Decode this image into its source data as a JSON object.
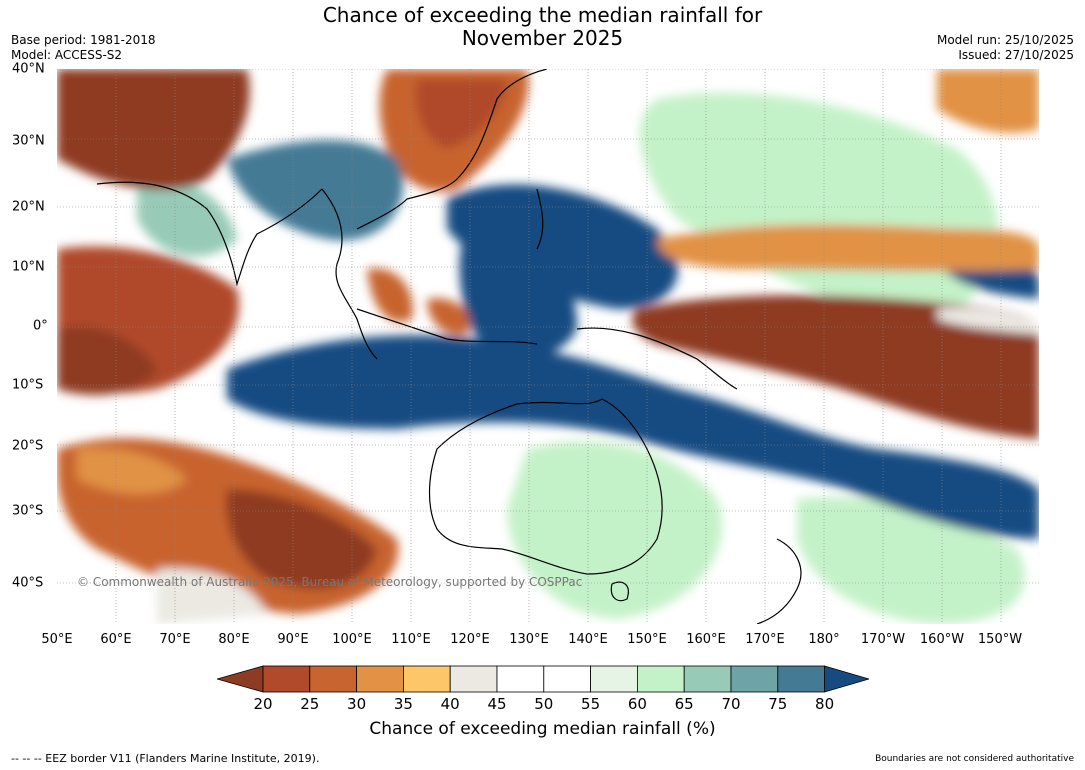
{
  "title_line1": "Chance of exceeding the median rainfall for",
  "title_line2": "November 2025",
  "left_meta": {
    "base_period": "Base period: 1981-2018",
    "model": "Model: ACCESS-S2"
  },
  "right_meta": {
    "model_run": "Model run: 25/10/2025",
    "issued": "Issued: 27/10/2025"
  },
  "lon_labels": [
    "50°E",
    "60°E",
    "70°E",
    "80°E",
    "90°E",
    "100°E",
    "110°E",
    "120°E",
    "130°E",
    "140°E",
    "150°E",
    "160°E",
    "170°E",
    "180°",
    "170°W",
    "160°W",
    "150°W"
  ],
  "lat_labels": [
    "40°N",
    "30°N",
    "20°N",
    "10°N",
    "0°",
    "10°S",
    "20°S",
    "30°S",
    "40°S"
  ],
  "colorbar": {
    "labels": [
      "20",
      "25",
      "30",
      "35",
      "40",
      "45",
      "50",
      "55",
      "60",
      "65",
      "70",
      "75",
      "80"
    ],
    "colors": [
      "#8e3b23",
      "#b04a2a",
      "#c8642f",
      "#e19244",
      "#fdc668",
      "#ece9e3",
      "#ffffff",
      "#ffffff",
      "#e6f4e6",
      "#c4f2c8",
      "#98cbb7",
      "#6ea4a6",
      "#457a95",
      "#164b82"
    ],
    "title": "Chance of exceeding median rainfall (%)"
  },
  "map": {
    "copyright": "© Commonwealth of Australia 2025, Bureau of Meteorology, supported by COSPPac"
  },
  "footer": {
    "eez": "--  --  -- EEZ border V11 (Flanders Marine Institute, 2019).",
    "disclaimer": "Boundaries are not considered authoritative"
  }
}
